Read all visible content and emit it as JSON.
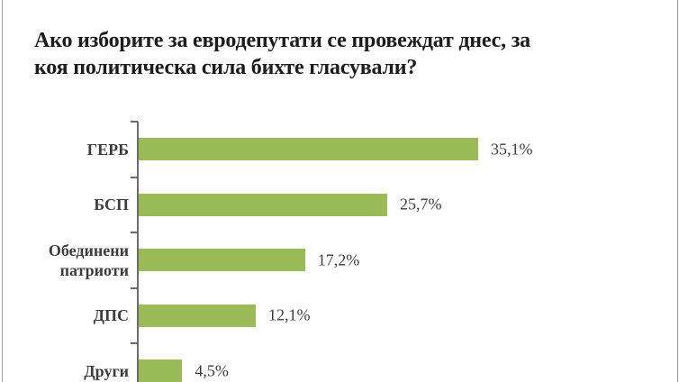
{
  "page": {
    "background": "#ffffff",
    "border_color": "#9b9b9b"
  },
  "title": {
    "text": "Ако изборите за евродепутати се провеждат днес, за коя политическа сила бихте гласували?",
    "lines": [
      "Ако изборите за евродепутати се провеждат днес, за",
      "коя политическа сила бихте гласували?"
    ],
    "color": "#1c1c1c"
  },
  "chart_data": {
    "type": "bar",
    "orientation": "horizontal",
    "title": "Ако изборите за евродепутати се провеждат днес, за коя политическа сила бихте гласували?",
    "categories": [
      "ГЕРБ",
      "БСП",
      "Обединени патриоти",
      "ДПС",
      "Други"
    ],
    "values": [
      35.1,
      25.7,
      17.2,
      12.1,
      4.5
    ],
    "value_labels": [
      "35,1%",
      "25,7%",
      "17,2%",
      "12,1%",
      "4,5%"
    ],
    "bar_color": "#9bbb59",
    "axis_color": "#6b6b6b",
    "label_color": "#3d3d3d",
    "xlabel": "",
    "ylabel": "",
    "xlim": [
      0,
      40
    ],
    "grid": false,
    "legend": false,
    "data_labels": true
  }
}
